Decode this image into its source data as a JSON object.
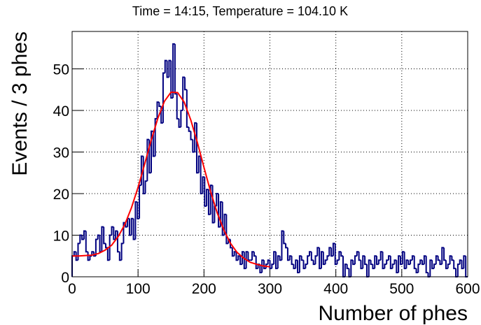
{
  "chart_data": {
    "type": "histogram",
    "title": "Time = 14:15, Temperature = 104.10 K",
    "x_label": "Number of phes",
    "y_label": "Events / 3 phes",
    "color": "#000080",
    "bins": [
      0,
      3,
      6,
      9,
      12,
      15,
      18,
      21,
      24,
      27,
      30,
      33,
      36,
      39,
      42,
      45,
      48,
      51,
      54,
      57,
      60,
      63,
      66,
      69,
      72,
      75,
      78,
      81,
      84,
      87,
      90,
      93,
      96,
      99,
      102,
      105,
      108,
      111,
      114,
      117,
      120,
      123,
      126,
      129,
      132,
      135,
      138,
      141,
      144,
      147,
      150,
      153,
      156,
      159,
      162,
      165,
      168,
      171,
      174,
      177,
      180,
      183,
      186,
      189,
      192,
      195,
      198,
      201,
      204,
      207,
      210,
      213,
      216,
      219,
      222,
      225,
      228,
      231,
      234,
      237,
      240,
      243,
      246,
      249,
      252,
      255,
      258,
      261,
      264,
      267,
      270,
      273,
      276,
      279,
      282,
      285,
      288,
      291,
      294,
      297,
      300,
      303,
      306,
      309,
      312,
      315,
      318,
      321,
      324,
      327,
      330,
      333,
      336,
      339,
      342,
      345,
      348,
      351,
      354,
      357,
      360,
      363,
      366,
      369,
      372,
      375,
      378,
      381,
      384,
      387,
      390,
      393,
      396,
      399,
      402,
      405,
      408,
      411,
      414,
      417,
      420,
      423,
      426,
      429,
      432,
      435,
      438,
      441,
      444,
      447,
      450,
      453,
      456,
      459,
      462,
      465,
      468,
      471,
      474,
      477,
      480,
      483,
      486,
      489,
      492,
      495,
      498,
      501,
      504,
      507,
      510,
      513,
      516,
      519,
      522,
      525,
      528,
      531,
      534,
      537,
      540,
      543,
      546,
      549,
      552,
      555,
      558,
      561,
      564,
      567,
      570,
      573,
      576,
      579,
      582,
      585,
      588,
      591,
      594,
      597,
      600
    ],
    "counts": [
      5,
      6,
      4,
      8,
      10,
      9,
      11,
      6,
      4,
      5,
      6,
      5,
      9,
      10,
      6,
      12,
      8,
      7,
      4,
      10,
      12,
      9,
      11,
      6,
      4,
      8,
      13,
      12,
      14,
      10,
      14,
      9,
      18,
      14,
      22,
      29,
      20,
      23,
      33,
      25,
      35,
      29,
      38,
      42,
      41,
      37,
      49,
      52,
      48,
      52,
      43,
      56,
      44,
      38,
      36,
      40,
      48,
      45,
      36,
      35,
      33,
      30,
      37,
      25,
      29,
      20,
      24,
      17,
      21,
      15,
      22,
      13,
      17,
      20,
      12,
      18,
      10,
      15,
      8,
      9,
      7,
      5,
      6,
      4,
      5,
      3,
      6,
      2,
      6,
      4,
      4,
      6,
      5,
      2,
      3,
      1,
      4,
      2,
      3,
      4,
      2,
      3,
      6,
      2,
      5,
      4,
      11,
      8,
      7,
      4,
      5,
      3,
      2,
      4,
      1,
      5,
      4,
      2,
      3,
      5,
      6,
      4,
      3,
      5,
      7,
      2,
      6,
      3,
      4,
      5,
      7,
      5,
      8,
      3,
      4,
      6,
      5,
      0,
      3,
      2,
      0,
      4,
      3,
      5,
      6,
      4,
      2,
      5,
      3,
      0,
      4,
      3,
      2,
      5,
      3,
      4,
      6,
      2,
      3,
      4,
      5,
      2,
      3,
      4,
      1,
      5,
      3,
      6,
      2,
      4,
      3,
      4,
      5,
      2,
      1,
      3,
      4,
      3,
      5,
      1,
      0,
      4,
      2,
      3,
      5,
      4,
      3,
      7,
      4,
      2,
      3,
      5,
      4,
      2,
      0,
      3,
      4,
      2,
      5,
      0
    ],
    "fit": {
      "color": "#ff0000",
      "x": [
        0,
        10,
        20,
        30,
        40,
        50,
        60,
        70,
        80,
        90,
        100,
        110,
        120,
        130,
        140,
        150,
        160,
        170,
        180,
        190,
        200,
        210,
        220,
        230,
        240,
        250,
        260,
        270,
        280,
        290,
        300
      ],
      "values": [
        5.0,
        5.0,
        5.1,
        5.2,
        5.6,
        6.4,
        7.6,
        9.7,
        12.6,
        16.6,
        21.5,
        27.1,
        32.9,
        38.1,
        42.2,
        44.4,
        44.3,
        42.0,
        37.7,
        32.3,
        26.3,
        20.5,
        15.4,
        11.3,
        8.1,
        5.9,
        4.5,
        3.5,
        3.0,
        2.6,
        2.4
      ]
    },
    "xlim": [
      0,
      600
    ],
    "ylim": [
      0,
      59
    ],
    "xticks": [
      0,
      100,
      200,
      300,
      400,
      500,
      600
    ],
    "yticks": [
      0,
      10,
      20,
      30,
      40,
      50
    ],
    "grid": true
  }
}
